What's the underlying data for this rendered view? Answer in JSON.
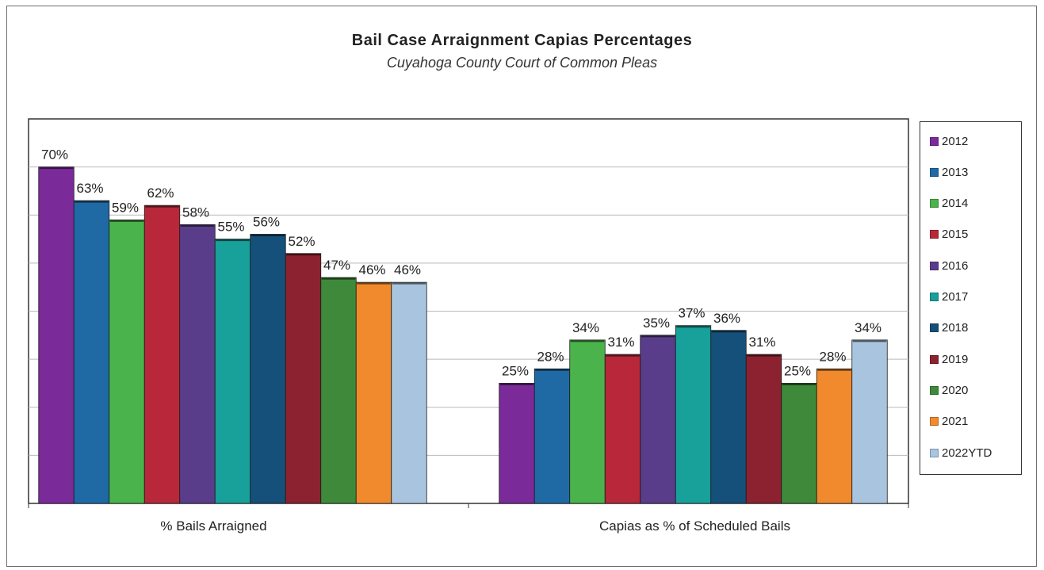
{
  "chart_data": {
    "type": "bar",
    "title": "Bail Case Arraignment Capias Percentages",
    "subtitle": "Cuyahoga County Court of Common Pleas",
    "categories": [
      "% Bails Arraigned",
      "Capias as % of Scheduled Bails"
    ],
    "ylim": [
      0,
      0.8
    ],
    "grid": true,
    "legend_position": "right",
    "series": [
      {
        "name": "2012",
        "values": [
          0.7,
          0.25
        ],
        "labels": [
          "70%",
          "25%"
        ],
        "color": "#7b2a9a"
      },
      {
        "name": "2013",
        "values": [
          0.63,
          0.28
        ],
        "labels": [
          "63%",
          "28%"
        ],
        "color": "#1f6aa5"
      },
      {
        "name": "2014",
        "values": [
          0.59,
          0.34
        ],
        "labels": [
          "59%",
          "34%"
        ],
        "color": "#4bb34b"
      },
      {
        "name": "2015",
        "values": [
          0.62,
          0.31
        ],
        "labels": [
          "62%",
          "31%"
        ],
        "color": "#b8283a"
      },
      {
        "name": "2016",
        "values": [
          0.58,
          0.35
        ],
        "labels": [
          "58%",
          "35%"
        ],
        "color": "#5a3d8a"
      },
      {
        "name": "2017",
        "values": [
          0.55,
          0.37
        ],
        "labels": [
          "55%",
          "37%"
        ],
        "color": "#18a09a"
      },
      {
        "name": "2018",
        "values": [
          0.56,
          0.36
        ],
        "labels": [
          "56%",
          "36%"
        ],
        "color": "#15507a"
      },
      {
        "name": "2019",
        "values": [
          0.52,
          0.31
        ],
        "labels": [
          "52%",
          "31%"
        ],
        "color": "#8c2230"
      },
      {
        "name": "2020",
        "values": [
          0.47,
          0.25
        ],
        "labels": [
          "47%",
          "25%"
        ],
        "color": "#3e8a3a"
      },
      {
        "name": "2021",
        "values": [
          0.46,
          0.28
        ],
        "labels": [
          "46%",
          "28%"
        ],
        "color": "#f08a2c"
      },
      {
        "name": "2022YTD",
        "values": [
          0.46,
          0.34
        ],
        "labels": [
          "46%",
          "34%"
        ],
        "color": "#a9c4df"
      }
    ]
  }
}
